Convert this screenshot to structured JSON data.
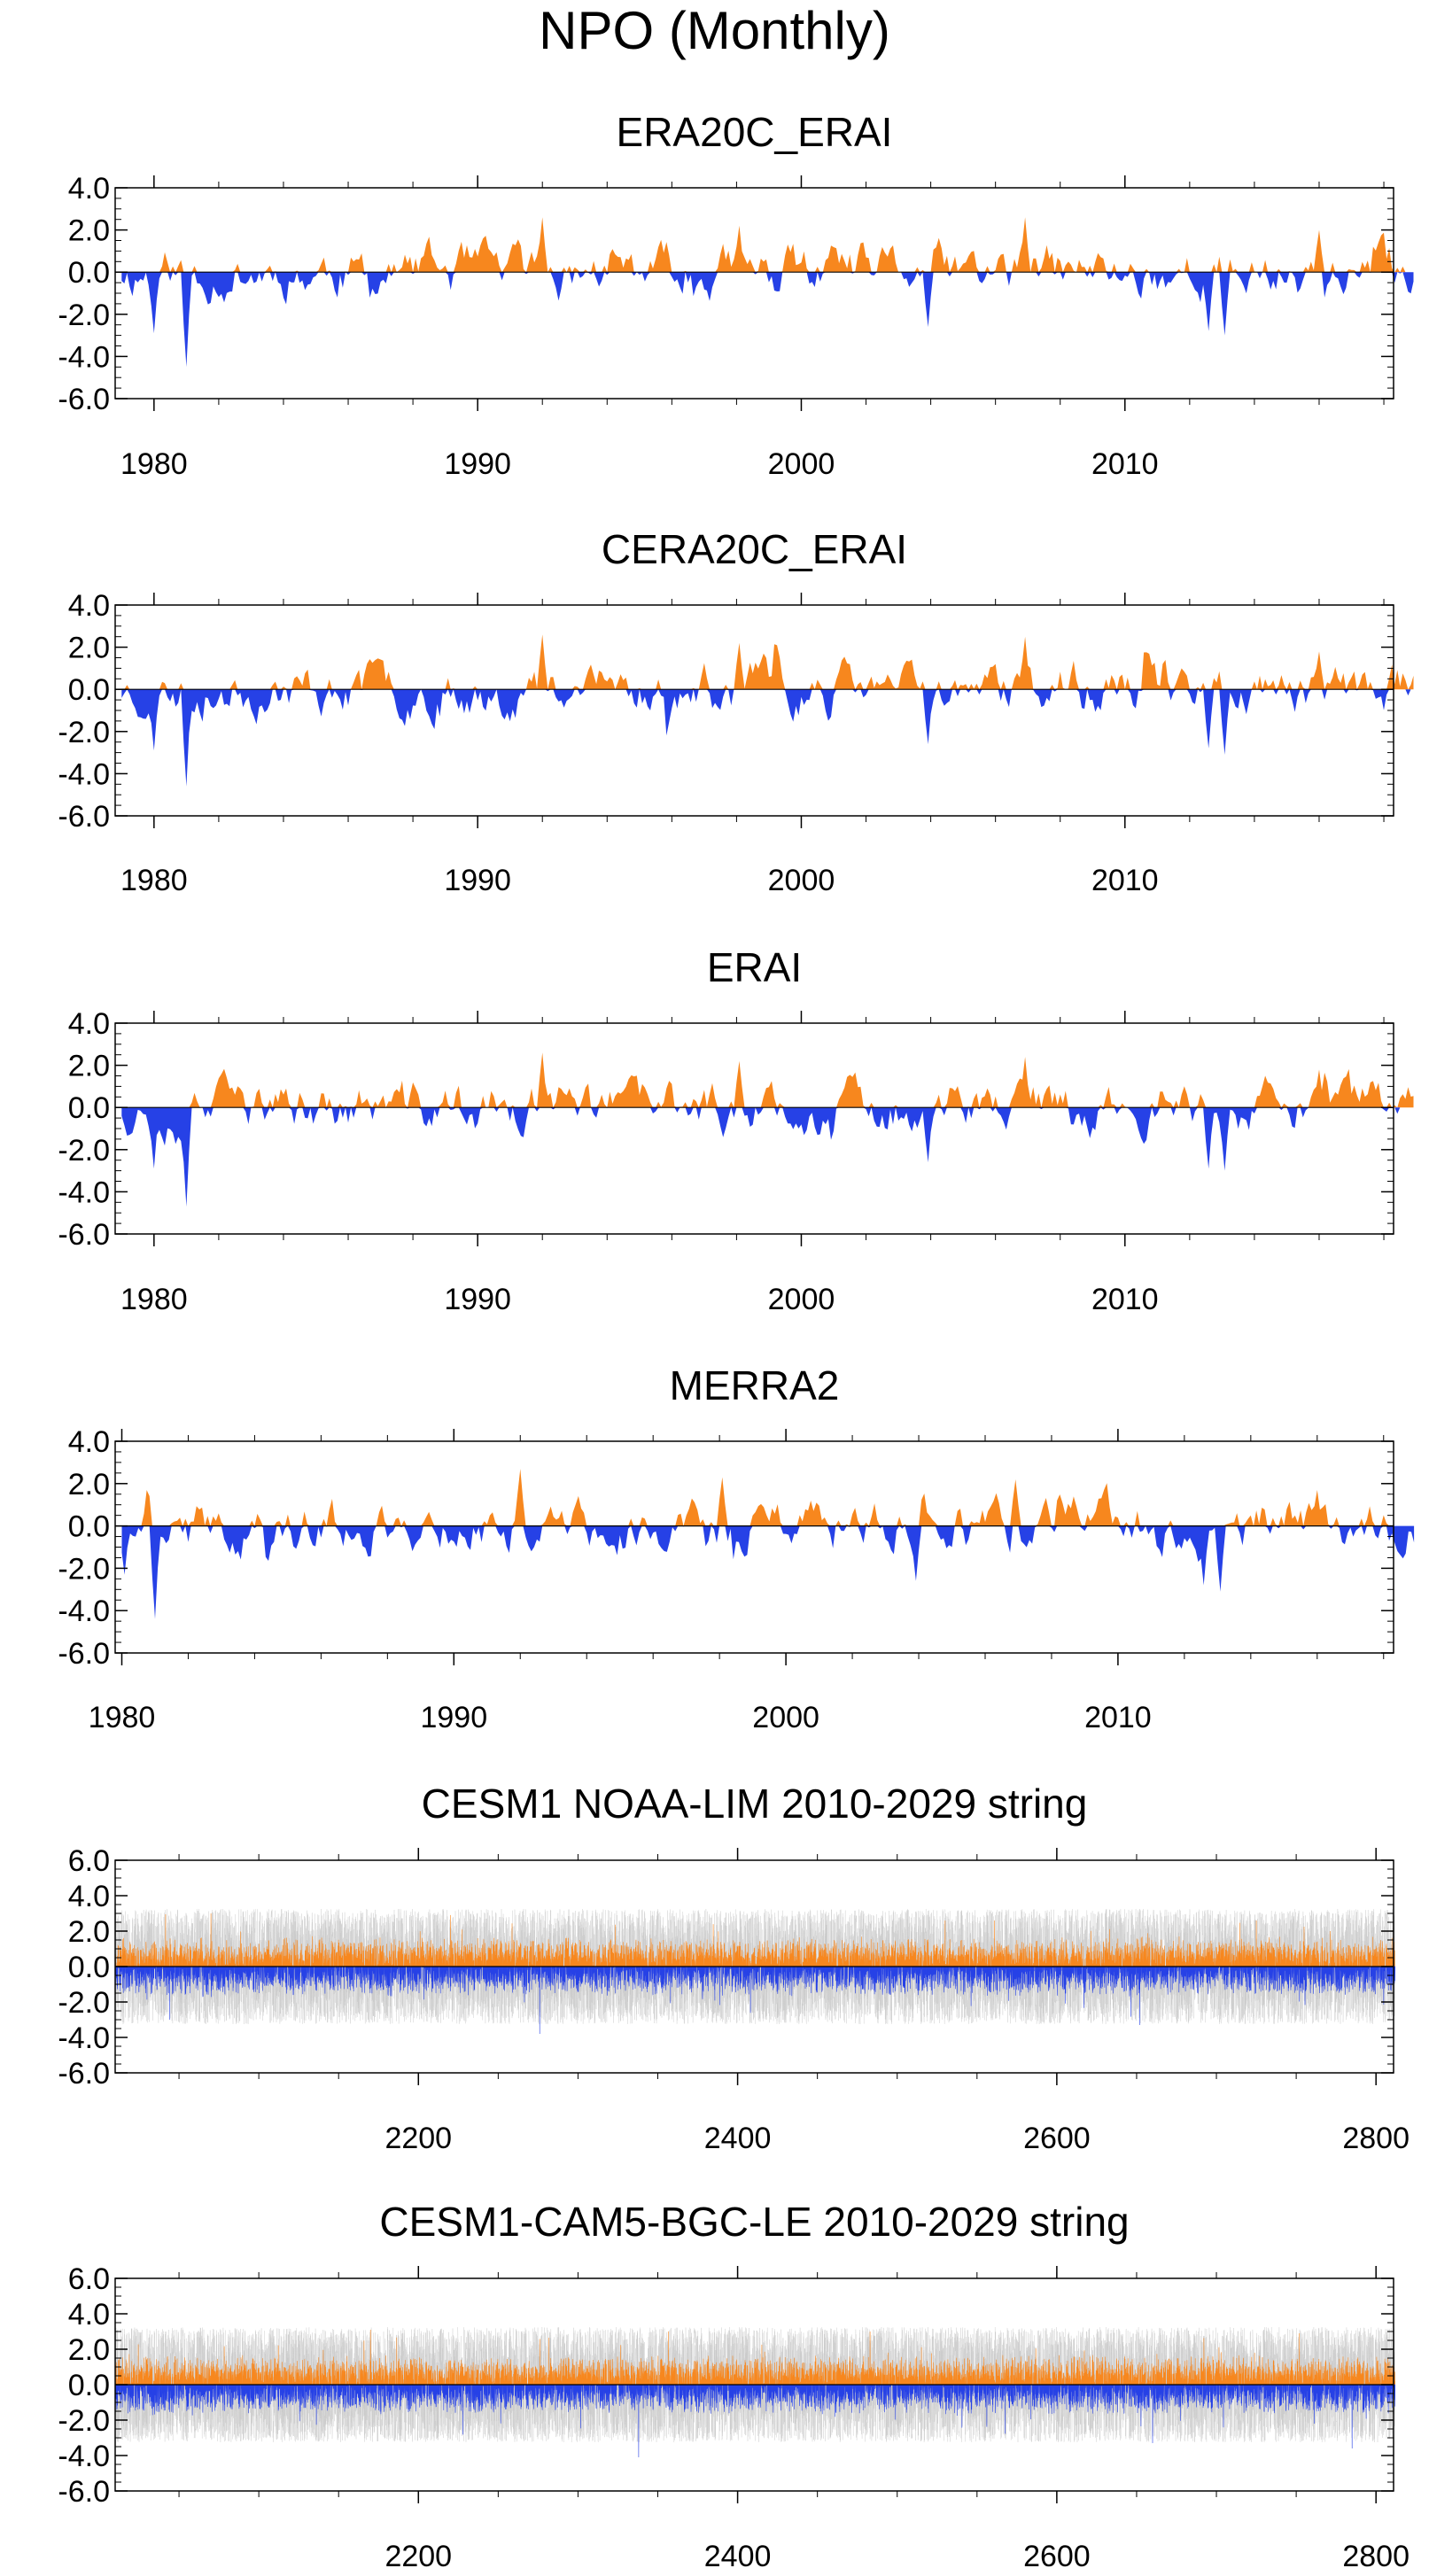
{
  "page": {
    "title": "NPO (Monthly)"
  },
  "style": {
    "positive_color": "#f7871e",
    "negative_color": "#2641e6",
    "spread_color": "#c8c8c8",
    "axis_color": "#000000"
  },
  "chart_data": [
    {
      "type": "area",
      "title": "ERA20C_ERAI",
      "x_unit": "year",
      "xlim": [
        1978.8,
        2018.3
      ],
      "ylim": [
        -6.0,
        4.0
      ],
      "yticks": [
        "4.0",
        "2.0",
        "0.0",
        "-2.0",
        "-4.0",
        "-6.0"
      ],
      "xticks": [
        1980,
        1990,
        2000,
        2010
      ],
      "baseline": 0.0,
      "start_year": 1979,
      "end_year": 2018,
      "extremes": [
        [
          1981.0,
          -4.5
        ],
        [
          1980.0,
          -2.9
        ],
        [
          1992.0,
          2.6
        ],
        [
          2006.9,
          2.6
        ],
        [
          2013.1,
          -3.0
        ],
        [
          2012.6,
          -2.8
        ],
        [
          2003.9,
          -2.6
        ],
        [
          1998.1,
          2.2
        ],
        [
          2016.0,
          2.0
        ]
      ],
      "seed": 11
    },
    {
      "type": "area",
      "title": "CERA20C_ERAI",
      "x_unit": "year",
      "xlim": [
        1978.8,
        2018.3
      ],
      "ylim": [
        -6.0,
        4.0
      ],
      "yticks": [
        "4.0",
        "2.0",
        "0.0",
        "-2.0",
        "-4.0",
        "-6.0"
      ],
      "xticks": [
        1980,
        1990,
        2000,
        2010
      ],
      "baseline": 0.0,
      "start_year": 1979,
      "end_year": 2018,
      "extremes": [
        [
          1981.0,
          -4.6
        ],
        [
          1980.0,
          -2.9
        ],
        [
          1992.0,
          2.6
        ],
        [
          2006.9,
          2.5
        ],
        [
          2013.1,
          -3.1
        ],
        [
          2012.6,
          -2.8
        ],
        [
          2003.9,
          -2.6
        ],
        [
          1998.1,
          2.2
        ],
        [
          2016.0,
          1.8
        ]
      ],
      "seed": 23
    },
    {
      "type": "area",
      "title": "ERAI",
      "x_unit": "year",
      "xlim": [
        1978.8,
        2018.3
      ],
      "ylim": [
        -6.0,
        4.0
      ],
      "yticks": [
        "4.0",
        "2.0",
        "0.0",
        "-2.0",
        "-4.0",
        "-6.0"
      ],
      "xticks": [
        1980,
        1990,
        2000,
        2010
      ],
      "baseline": 0.0,
      "start_year": 1979,
      "end_year": 2018,
      "extremes": [
        [
          1981.0,
          -4.7
        ],
        [
          1980.0,
          -2.9
        ],
        [
          1992.0,
          2.6
        ],
        [
          2006.9,
          2.4
        ],
        [
          2013.1,
          -3.0
        ],
        [
          2012.6,
          -2.9
        ],
        [
          2003.9,
          -2.6
        ],
        [
          1998.1,
          2.2
        ],
        [
          2016.0,
          1.8
        ]
      ],
      "seed": 37
    },
    {
      "type": "area",
      "title": "MERRA2",
      "x_unit": "year",
      "xlim": [
        1979.8,
        2018.3
      ],
      "ylim": [
        -6.0,
        4.0
      ],
      "yticks": [
        "4.0",
        "2.0",
        "0.0",
        "-2.0",
        "-4.0",
        "-6.0"
      ],
      "xticks": [
        1980,
        1990,
        2000,
        2010
      ],
      "baseline": 0.0,
      "start_year": 1980,
      "end_year": 2018,
      "extremes": [
        [
          1981.0,
          -4.4
        ],
        [
          1980.1,
          -2.3
        ],
        [
          1992.0,
          2.7
        ],
        [
          2006.9,
          2.2
        ],
        [
          2013.1,
          -3.1
        ],
        [
          2012.6,
          -2.8
        ],
        [
          2003.9,
          -2.6
        ],
        [
          1998.1,
          2.3
        ],
        [
          2016.0,
          1.7
        ]
      ],
      "seed": 41
    },
    {
      "type": "area",
      "title": "CESM1 NOAA-LIM 2010-2029 string",
      "x_unit": "year",
      "xlim": [
        2010,
        2811
      ],
      "ylim": [
        -6.0,
        6.0
      ],
      "yticks": [
        "6.0",
        "4.0",
        "2.0",
        "0.0",
        "-2.0",
        "-4.0",
        "-6.0"
      ],
      "xticks": [
        2200,
        2400,
        2600,
        2800
      ],
      "baseline": 0.0,
      "start_year": 2010,
      "end_year": 2811,
      "ensemble_spread": true,
      "extremes": [
        [
          2070.0,
          3.0
        ],
        [
          2276.0,
          -3.8
        ],
        [
          2652.0,
          -3.3
        ],
        [
          2530.0,
          2.6
        ],
        [
          2044.0,
          -3.0
        ],
        [
          2725.0,
          2.6
        ]
      ],
      "seed": 53
    },
    {
      "type": "area",
      "title": "CESM1-CAM5-BGC-LE 2010-2029 string",
      "x_unit": "year",
      "xlim": [
        2010,
        2811
      ],
      "ylim": [
        -6.0,
        6.0
      ],
      "yticks": [
        "6.0",
        "4.0",
        "2.0",
        "0.0",
        "-2.0",
        "-4.0",
        "-6.0"
      ],
      "xticks": [
        2200,
        2400,
        2600,
        2800
      ],
      "baseline": 0.0,
      "start_year": 2010,
      "end_year": 2811,
      "ensemble_spread": true,
      "extremes": [
        [
          2170.0,
          3.1
        ],
        [
          2338.0,
          -4.1
        ],
        [
          2483.0,
          3.0
        ],
        [
          2752.0,
          2.9
        ],
        [
          2785.0,
          -3.6
        ],
        [
          2660.0,
          -3.3
        ]
      ],
      "seed": 67
    }
  ]
}
